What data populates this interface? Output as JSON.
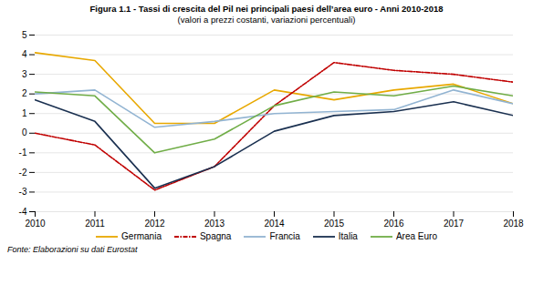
{
  "chart_data": {
    "type": "line",
    "title": "Figura 1.1 - Tassi di crescita del Pil nei principali paesi dell’area euro - Anni 2010-2018",
    "subtitle": "(valori a prezzi costanti, variazioni percentuali)",
    "annotations": [
      "Fonte: Elaborazioni su dati Eurostat"
    ],
    "x": [
      2010,
      2011,
      2012,
      2013,
      2014,
      2015,
      2016,
      2017,
      2018
    ],
    "xlim": [
      2010,
      2018
    ],
    "xticks": [
      2010,
      2011,
      2012,
      2013,
      2014,
      2015,
      2016,
      2017,
      2018
    ],
    "ylim": [
      -4,
      5
    ],
    "yticks": [
      -4,
      -3,
      -2,
      -1,
      0,
      1,
      2,
      3,
      4,
      5
    ],
    "grid": true,
    "legend": "bottom",
    "series": [
      {
        "name": "Germania",
        "color": "#e8a800",
        "line_style": "solid",
        "values": [
          4.1,
          3.7,
          0.5,
          0.5,
          2.2,
          1.7,
          2.2,
          2.5,
          1.5
        ]
      },
      {
        "name": "Spagna",
        "color": "#c00000",
        "line_style": "dashdot",
        "values": [
          0.0,
          -0.6,
          -2.9,
          -1.7,
          1.4,
          3.6,
          3.2,
          3.0,
          2.6
        ]
      },
      {
        "name": "Francia",
        "color": "#92b4d2",
        "line_style": "solid",
        "values": [
          2.0,
          2.2,
          0.3,
          0.6,
          1.0,
          1.1,
          1.2,
          2.2,
          1.5
        ]
      },
      {
        "name": "Italia",
        "color": "#1a3050",
        "line_style": "solid",
        "values": [
          1.7,
          0.6,
          -2.8,
          -1.7,
          0.1,
          0.9,
          1.1,
          1.6,
          0.9
        ]
      },
      {
        "name": "Area Euro",
        "color": "#70ad47",
        "line_style": "solid",
        "values": [
          2.1,
          1.9,
          -1.0,
          -0.3,
          1.4,
          2.1,
          1.9,
          2.4,
          1.9
        ]
      }
    ]
  }
}
